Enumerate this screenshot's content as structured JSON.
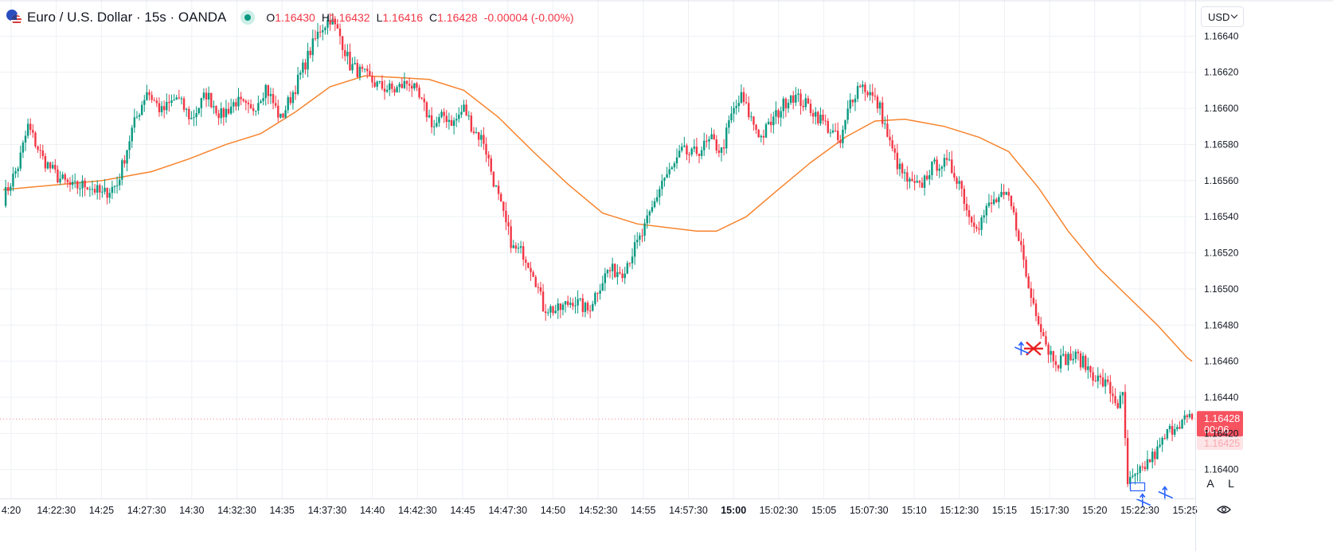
{
  "header": {
    "symbol": "Euro / U.S. Dollar · 15s · OANDA",
    "ohlc": {
      "o_label": "O",
      "o": "1.16430",
      "h_label": "H",
      "h": "1.16432",
      "l_label": "L",
      "l": "1.16416",
      "c_label": "C",
      "c": "1.16428",
      "change": "-0.00004 (-0.00%)"
    }
  },
  "currency_selector": "USD",
  "buttons": {
    "auto": "A",
    "log": "L"
  },
  "colors": {
    "up": "#089981",
    "down": "#f23645",
    "ma": "#f7842d",
    "grid": "#eef0f4",
    "axis_text": "#131722",
    "price_tag": "#f7525f",
    "drawing": "#2962ff"
  },
  "chart_data": {
    "type": "candlestick",
    "ylim": [
      1.16384,
      1.1666
    ],
    "y_ticks": [
      "1.16400",
      "1.16420",
      "1.16440",
      "1.16460",
      "1.16480",
      "1.16500",
      "1.16520",
      "1.16540",
      "1.16560",
      "1.16580",
      "1.16600",
      "1.16620",
      "1.16640"
    ],
    "x_ticks": [
      "4:20",
      "14:22:30",
      "14:25",
      "14:27:30",
      "14:30",
      "14:32:30",
      "14:35",
      "14:37:30",
      "14:40",
      "14:42:30",
      "14:45",
      "14:47:30",
      "14:50",
      "14:52:30",
      "14:55",
      "14:57:30",
      "15:00",
      "15:02:30",
      "15:05",
      "15:07:30",
      "15:10",
      "15:12:30",
      "15:15",
      "15:17:30",
      "15:20",
      "15:22:30",
      "15:25"
    ],
    "x_tick_bold": "15:00",
    "last_price": "1.16428",
    "countdown": "00:06",
    "secondary_price": "1.16425",
    "close_path": [
      [
        0,
        1.1655
      ],
      [
        6,
        1.16568
      ],
      [
        10,
        1.1659
      ],
      [
        16,
        1.16572
      ],
      [
        22,
        1.16562
      ],
      [
        28,
        1.16556
      ],
      [
        34,
        1.16558
      ],
      [
        40,
        1.16552
      ],
      [
        46,
        1.16558
      ],
      [
        52,
        1.16588
      ],
      [
        58,
        1.1661
      ],
      [
        64,
        1.16598
      ],
      [
        70,
        1.16606
      ],
      [
        76,
        1.16594
      ],
      [
        82,
        1.16608
      ],
      [
        88,
        1.16596
      ],
      [
        94,
        1.16604
      ],
      [
        100,
        1.16598
      ],
      [
        106,
        1.16612
      ],
      [
        112,
        1.16594
      ],
      [
        118,
        1.16612
      ],
      [
        124,
        1.16632
      ],
      [
        128,
        1.16644
      ],
      [
        132,
        1.1665
      ],
      [
        136,
        1.1664
      ],
      [
        140,
        1.16624
      ],
      [
        146,
        1.16618
      ],
      [
        152,
        1.16612
      ],
      [
        158,
        1.1661
      ],
      [
        164,
        1.16615
      ],
      [
        170,
        1.166
      ],
      [
        174,
        1.1659
      ],
      [
        178,
        1.16596
      ],
      [
        182,
        1.16592
      ],
      [
        186,
        1.166
      ],
      [
        190,
        1.16588
      ],
      [
        194,
        1.16582
      ],
      [
        198,
        1.1656
      ],
      [
        202,
        1.1654
      ],
      [
        206,
        1.16522
      ],
      [
        210,
        1.1652
      ],
      [
        214,
        1.1651
      ],
      [
        218,
        1.1649
      ],
      [
        224,
        1.16488
      ],
      [
        230,
        1.16494
      ],
      [
        236,
        1.16488
      ],
      [
        240,
        1.165
      ],
      [
        244,
        1.1651
      ],
      [
        250,
        1.1651
      ],
      [
        254,
        1.1652
      ],
      [
        258,
        1.1653
      ],
      [
        262,
        1.16544
      ],
      [
        266,
        1.1656
      ],
      [
        270,
        1.16566
      ],
      [
        274,
        1.16576
      ],
      [
        278,
        1.16574
      ],
      [
        282,
        1.16578
      ],
      [
        286,
        1.16582
      ],
      [
        290,
        1.16576
      ],
      [
        294,
        1.16596
      ],
      [
        298,
        1.16606
      ],
      [
        302,
        1.16594
      ],
      [
        306,
        1.16584
      ],
      [
        310,
        1.16592
      ],
      [
        314,
        1.166
      ],
      [
        318,
        1.16608
      ],
      [
        322,
        1.16604
      ],
      [
        326,
        1.166
      ],
      [
        330,
        1.16594
      ],
      [
        334,
        1.16588
      ],
      [
        338,
        1.1658
      ],
      [
        342,
        1.16604
      ],
      [
        346,
        1.16614
      ],
      [
        350,
        1.16608
      ],
      [
        354,
        1.166
      ],
      [
        358,
        1.1658
      ],
      [
        362,
        1.16566
      ],
      [
        366,
        1.16558
      ],
      [
        370,
        1.16556
      ],
      [
        374,
        1.16566
      ],
      [
        378,
        1.1657
      ],
      [
        382,
        1.16568
      ],
      [
        386,
        1.1656
      ],
      [
        390,
        1.1654
      ],
      [
        394,
        1.16536
      ],
      [
        398,
        1.16546
      ],
      [
        402,
        1.1655
      ],
      [
        406,
        1.1655
      ],
      [
        410,
        1.1653
      ],
      [
        414,
        1.165
      ],
      [
        418,
        1.16484
      ],
      [
        422,
        1.16466
      ],
      [
        426,
        1.1646
      ],
      [
        430,
        1.16462
      ],
      [
        434,
        1.16462
      ],
      [
        438,
        1.16456
      ],
      [
        442,
        1.1645
      ],
      [
        446,
        1.16446
      ],
      [
        450,
        1.16436
      ],
      [
        452,
        1.1644
      ],
      [
        454,
        1.16392
      ],
      [
        458,
        1.16396
      ],
      [
        462,
        1.16404
      ],
      [
        466,
        1.1641
      ],
      [
        470,
        1.1642
      ],
      [
        474,
        1.16426
      ],
      [
        478,
        1.16428
      ],
      [
        480,
        1.16428
      ]
    ],
    "moving_average": [
      [
        0,
        1.16555
      ],
      [
        40,
        1.1656
      ],
      [
        60,
        1.16565
      ],
      [
        75,
        1.16572
      ],
      [
        90,
        1.1658
      ],
      [
        104,
        1.16586
      ],
      [
        118,
        1.16598
      ],
      [
        132,
        1.16612
      ],
      [
        146,
        1.16618
      ],
      [
        160,
        1.16617
      ],
      [
        172,
        1.16616
      ],
      [
        186,
        1.1661
      ],
      [
        200,
        1.16595
      ],
      [
        214,
        1.16576
      ],
      [
        228,
        1.16558
      ],
      [
        242,
        1.16542
      ],
      [
        256,
        1.16536
      ],
      [
        268,
        1.16534
      ],
      [
        280,
        1.16532
      ],
      [
        288,
        1.16532
      ],
      [
        300,
        1.1654
      ],
      [
        312,
        1.16554
      ],
      [
        326,
        1.1657
      ],
      [
        340,
        1.16584
      ],
      [
        352,
        1.16593
      ],
      [
        364,
        1.16594
      ],
      [
        380,
        1.1659
      ],
      [
        394,
        1.16584
      ],
      [
        406,
        1.16576
      ],
      [
        418,
        1.16556
      ],
      [
        430,
        1.16532
      ],
      [
        442,
        1.16512
      ],
      [
        454,
        1.16496
      ],
      [
        466,
        1.1648
      ],
      [
        478,
        1.16462
      ],
      [
        480,
        1.1646
      ]
    ],
    "annotations": [
      {
        "kind": "cross",
        "x": 416,
        "y": 1.16467
      },
      {
        "kind": "arrow-up",
        "x": 411,
        "y": 1.16466
      },
      {
        "kind": "rectangle",
        "x": 458,
        "y": 1.1639
      },
      {
        "kind": "arrow-up",
        "x": 460,
        "y": 1.16382
      },
      {
        "kind": "arrow-up",
        "x": 469,
        "y": 1.16386
      }
    ]
  }
}
